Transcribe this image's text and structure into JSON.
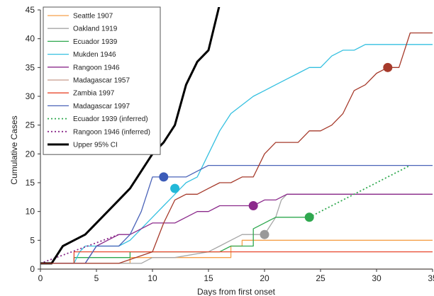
{
  "chart_data": {
    "type": "line",
    "title": "",
    "xlabel": "Days from first onset",
    "ylabel": "Cumulative Cases",
    "xlim": [
      0,
      35
    ],
    "ylim": [
      0,
      45
    ],
    "xticks": [
      0,
      5,
      10,
      15,
      20,
      25,
      30,
      35
    ],
    "yticks": [
      0,
      5,
      10,
      15,
      20,
      25,
      30,
      35,
      40,
      45
    ],
    "grid": false,
    "legend_position": "top-left",
    "series": [
      {
        "name": "Seattle 1907",
        "color": "#f5a04a",
        "style": "solid",
        "width": 1.3,
        "x": [
          0,
          7,
          8,
          8,
          17,
          17,
          18,
          18,
          35
        ],
        "y": [
          1,
          1,
          1,
          2,
          2,
          4,
          4,
          5,
          5
        ]
      },
      {
        "name": "Oakland 1919",
        "color": "#a6a6a6",
        "style": "solid",
        "width": 1.3,
        "x": [
          0,
          8,
          8,
          9,
          10,
          12,
          12,
          15,
          16,
          17,
          18,
          19,
          20,
          21,
          21.5,
          22,
          35
        ],
        "y": [
          1,
          1,
          1,
          1,
          2,
          2,
          2,
          3,
          4,
          5,
          6,
          6,
          6,
          9,
          12,
          13,
          13
        ]
      },
      {
        "name": "Ecuador 1939",
        "color": "#2fa84f",
        "style": "solid",
        "width": 1.3,
        "x": [
          0,
          3,
          3,
          8,
          8,
          9,
          9,
          15,
          16,
          16,
          17,
          18,
          19,
          19,
          20,
          21,
          22,
          24
        ],
        "y": [
          1,
          1,
          2,
          2,
          3,
          3,
          3,
          3,
          3,
          3,
          4,
          4,
          4,
          7,
          8,
          9,
          9,
          9
        ]
      },
      {
        "name": "Mukden 1946",
        "color": "#35c0e0",
        "style": "solid",
        "width": 1.3,
        "x": [
          0,
          2,
          3,
          3.5,
          4,
          6,
          7,
          8,
          9,
          10,
          11,
          11.5,
          12,
          12.5,
          13,
          14,
          15,
          16,
          17,
          19,
          20,
          21,
          22,
          23,
          24,
          25,
          25.5,
          26,
          27,
          28,
          29,
          30,
          31,
          32,
          33,
          35
        ],
        "y": [
          1,
          1,
          1,
          3,
          4,
          4,
          4,
          5,
          7,
          9,
          11,
          12,
          13,
          14,
          15,
          16,
          20,
          24,
          27,
          30,
          31,
          32,
          33,
          34,
          35,
          35,
          36,
          37,
          38,
          38,
          39,
          39,
          39,
          39,
          39,
          39
        ]
      },
      {
        "name": "Rangoon 1946",
        "color": "#8b2a8b",
        "style": "solid",
        "width": 1.3,
        "x": [
          0,
          4,
          5,
          6,
          7,
          8,
          9,
          10,
          11,
          12,
          13,
          14,
          15,
          16,
          17,
          18,
          19,
          20,
          21,
          22,
          35
        ],
        "y": [
          1,
          1,
          4,
          5,
          6,
          6,
          7,
          8,
          8,
          8,
          9,
          10,
          10,
          11,
          11,
          11,
          11,
          12,
          12,
          13,
          13
        ]
      },
      {
        "name": "Madagascar 1957",
        "color": "#c79b8a",
        "style": "solid",
        "width": 1.3,
        "x": [
          0,
          35
        ],
        "y": [
          0,
          0
        ]
      },
      {
        "name": "Zambia 1997",
        "color": "#e8482e",
        "style": "solid",
        "width": 1.3,
        "x": [
          0,
          3,
          3,
          35
        ],
        "y": [
          1,
          1,
          3,
          3
        ]
      },
      {
        "name": "Madagascar 1997",
        "color": "#4a63b8",
        "style": "solid",
        "width": 1.3,
        "x": [
          0,
          4,
          5,
          7,
          8,
          9,
          10,
          11,
          13,
          14,
          15,
          35
        ],
        "y": [
          1,
          1,
          4,
          4,
          6,
          10,
          16,
          16,
          16,
          17,
          18,
          18
        ]
      },
      {
        "name": "Ecuador 1939 (inferred)",
        "color": "#2fa84f",
        "style": "dotted",
        "width": 1.8,
        "x": [
          24,
          33
        ],
        "y": [
          9,
          18
        ]
      },
      {
        "name": "Rangoon 1946 (inferred)",
        "color": "#8b2a8b",
        "style": "dotted",
        "width": 1.8,
        "x": [
          0,
          7
        ],
        "y": [
          1,
          6
        ]
      },
      {
        "name": "Upper 95% CI",
        "color": "#000000",
        "style": "solid",
        "width": 3,
        "x": [
          0,
          1,
          2,
          3,
          4,
          5,
          6,
          7,
          8,
          9,
          10,
          11,
          12,
          13,
          14,
          15,
          16
        ],
        "y": [
          1,
          1,
          4,
          5,
          6,
          8,
          10,
          12,
          14,
          17,
          20,
          22,
          25,
          32,
          36,
          38,
          46
        ]
      },
      {
        "name": "",
        "color": "#a63a2b",
        "style": "solid",
        "width": 1.3,
        "legend": false,
        "x": [
          0,
          7,
          10,
          11,
          12,
          13,
          14,
          15,
          16,
          17,
          18,
          19,
          20,
          21,
          22,
          23,
          24,
          25,
          26,
          27,
          28,
          29,
          30,
          31,
          32,
          33,
          35
        ],
        "y": [
          1,
          1,
          3,
          8,
          12,
          13,
          13,
          14,
          15,
          15,
          16,
          16,
          20,
          22,
          22,
          22,
          24,
          24,
          25,
          27,
          31,
          32,
          34,
          35,
          35,
          41,
          41
        ]
      }
    ],
    "markers": [
      {
        "x": 11,
        "y": 16,
        "color": "#3b5bb8"
      },
      {
        "x": 12,
        "y": 14,
        "color": "#22b8d8"
      },
      {
        "x": 19,
        "y": 11,
        "color": "#8b2a8b"
      },
      {
        "x": 20,
        "y": 6,
        "color": "#999999"
      },
      {
        "x": 24,
        "y": 9,
        "color": "#2fa84f"
      },
      {
        "x": 31,
        "y": 35,
        "color": "#a63a2b"
      }
    ]
  }
}
